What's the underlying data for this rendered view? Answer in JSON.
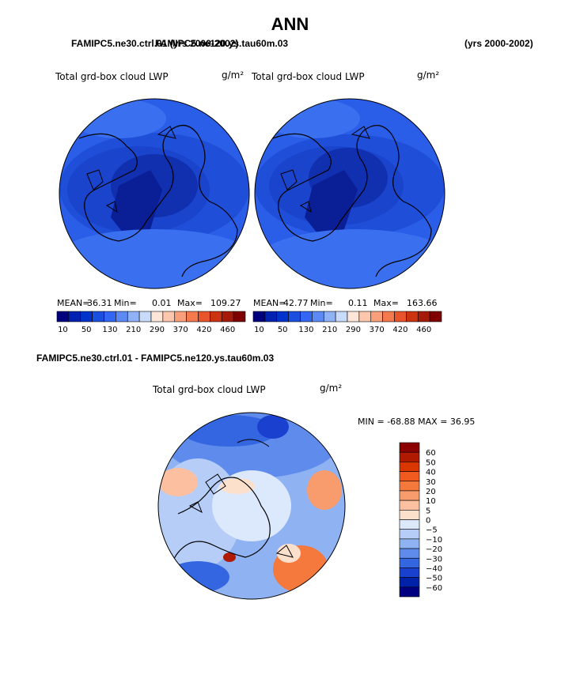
{
  "page": {
    "title": "ANN",
    "case1": "FAMIPC5.ne30.ctrl.01 (yrs 2000-2002)",
    "case2": "FAMIPC5.ne120.ys.tau60m.03",
    "case2_years": "(yrs 2000-2002)",
    "diff_title": "FAMIPC5.ne30.ctrl.01 - FAMIPC5.ne120.ys.tau60m.03"
  },
  "colors": {
    "fill_levels": [
      "#00007f",
      "#0022b0",
      "#0033cc",
      "#1a4fe0",
      "#3366f2",
      "#5c8af5",
      "#8fb2f7",
      "#c8dbfb",
      "#fde6d8",
      "#fcc7ad",
      "#f9a07a",
      "#f47a4e",
      "#e8542b",
      "#cc3311",
      "#a61a0a",
      "#7f0000"
    ],
    "land_line": "#000000"
  },
  "chart_data": [
    {
      "type": "heatmap",
      "projection": "north-polar-stereographic",
      "field": "Total grd-box cloud LWP",
      "units": "g/m²",
      "case": "FAMIPC5.ne30.ctrl.01",
      "stats": {
        "mean_label": "MEAN=",
        "mean": "36.31",
        "min_label": "Min=",
        "min": "0.01",
        "max_label": "Max=",
        "max": "109.27"
      },
      "colorbar_ticks": [
        "10",
        "50",
        "130",
        "210",
        "290",
        "370",
        "420",
        "460"
      ]
    },
    {
      "type": "heatmap",
      "projection": "north-polar-stereographic",
      "field": "Total grd-box cloud LWP",
      "units": "g/m²",
      "case": "FAMIPC5.ne120.ys.tau60m.03",
      "stats": {
        "mean_label": "MEAN=",
        "mean": "42.77",
        "min_label": "Min=",
        "min": "0.11",
        "max_label": "Max=",
        "max": "163.66"
      },
      "colorbar_ticks": [
        "10",
        "50",
        "130",
        "210",
        "290",
        "370",
        "420",
        "460"
      ]
    },
    {
      "type": "heatmap",
      "projection": "north-polar-stereographic",
      "field": "Total grd-box cloud LWP",
      "units": "g/m²",
      "case": "FAMIPC5.ne30.ctrl.01 - FAMIPC5.ne120.ys.tau60m.03",
      "stats": {
        "min_label": "MIN =",
        "min": "-68.88",
        "max_label": "MAX =",
        "max": "36.95"
      },
      "colorbar_levels": [
        "60",
        "50",
        "40",
        "30",
        "20",
        "10",
        "5",
        "0",
        "−5",
        "−10",
        "−20",
        "−30",
        "−40",
        "−50",
        "−60"
      ],
      "colorbar_colors": [
        "#8b0000",
        "#b01a00",
        "#d93600",
        "#f05a1e",
        "#f5783c",
        "#f89c6e",
        "#fcbfa0",
        "#fde0cc",
        "#dce8fb",
        "#b5cdf7",
        "#8fb2f3",
        "#5f8cec",
        "#3366e0",
        "#1a40d0",
        "#0022a8",
        "#000080"
      ]
    }
  ]
}
